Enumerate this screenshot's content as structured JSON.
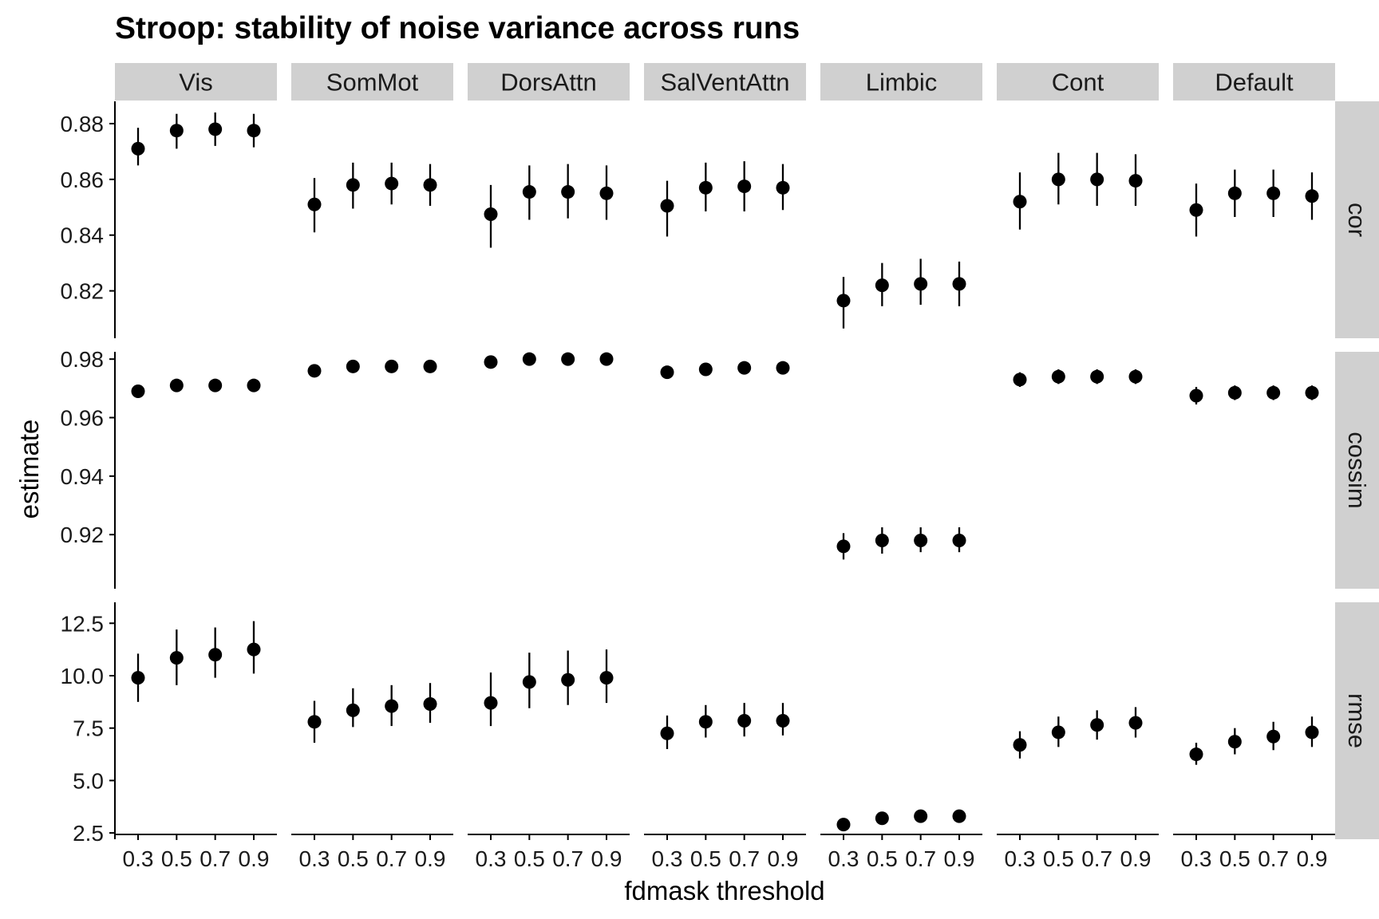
{
  "chart_data": {
    "type": "scatter",
    "title": "Stroop: stability of noise variance across runs",
    "xlabel": "fdmask threshold",
    "ylabel": "estimate",
    "x": [
      0.3,
      0.5,
      0.7,
      0.9
    ],
    "x_tick_labels": [
      "0.3",
      "0.5",
      "0.7",
      "0.9"
    ],
    "networks": [
      "Vis",
      "SomMot",
      "DorsAttn",
      "SalVentAttn",
      "Limbic",
      "Cont",
      "Default"
    ],
    "metrics": [
      {
        "name": "cor",
        "ylim": [
          0.803,
          0.888
        ],
        "y_ticks": [
          0.82,
          0.84,
          0.86,
          0.88
        ],
        "y_tick_labels": [
          "0.82",
          "0.84",
          "0.86",
          "0.88"
        ],
        "series": [
          {
            "name": "Vis",
            "values": [
              0.871,
              0.8775,
              0.878,
              0.8775
            ],
            "lower": [
              0.865,
              0.871,
              0.872,
              0.8715
            ],
            "upper": [
              0.8785,
              0.8835,
              0.884,
              0.8835
            ]
          },
          {
            "name": "SomMot",
            "values": [
              0.851,
              0.858,
              0.8585,
              0.858
            ],
            "lower": [
              0.841,
              0.8495,
              0.851,
              0.8505
            ],
            "upper": [
              0.8605,
              0.866,
              0.866,
              0.8655
            ]
          },
          {
            "name": "DorsAttn",
            "values": [
              0.8475,
              0.8555,
              0.8555,
              0.855
            ],
            "lower": [
              0.8355,
              0.8455,
              0.846,
              0.8455
            ],
            "upper": [
              0.858,
              0.865,
              0.8655,
              0.865
            ]
          },
          {
            "name": "SalVentAttn",
            "values": [
              0.8505,
              0.857,
              0.8575,
              0.857
            ],
            "lower": [
              0.8395,
              0.8485,
              0.8485,
              0.849
            ],
            "upper": [
              0.8595,
              0.866,
              0.8665,
              0.8655
            ]
          },
          {
            "name": "Limbic",
            "values": [
              0.8165,
              0.822,
              0.8225,
              0.8225
            ],
            "lower": [
              0.8065,
              0.8145,
              0.815,
              0.8145
            ],
            "upper": [
              0.825,
              0.83,
              0.8315,
              0.8305
            ]
          },
          {
            "name": "Cont",
            "values": [
              0.852,
              0.86,
              0.86,
              0.8595
            ],
            "lower": [
              0.842,
              0.851,
              0.8505,
              0.8505
            ],
            "upper": [
              0.8625,
              0.8695,
              0.8695,
              0.869
            ]
          },
          {
            "name": "Default",
            "values": [
              0.849,
              0.855,
              0.855,
              0.854
            ],
            "lower": [
              0.8395,
              0.8465,
              0.8465,
              0.8455
            ],
            "upper": [
              0.8585,
              0.8635,
              0.8635,
              0.8625
            ]
          }
        ]
      },
      {
        "name": "cossim",
        "ylim": [
          0.9015,
          0.9825
        ],
        "y_ticks": [
          0.92,
          0.94,
          0.96,
          0.98
        ],
        "y_tick_labels": [
          "0.92",
          "0.94",
          "0.96",
          "0.98"
        ],
        "series": [
          {
            "name": "Vis",
            "values": [
              0.969,
              0.971,
              0.971,
              0.971
            ],
            "lower": [
              0.9675,
              0.9695,
              0.9695,
              0.9695
            ],
            "upper": [
              0.9705,
              0.9725,
              0.9725,
              0.9725
            ]
          },
          {
            "name": "SomMot",
            "values": [
              0.976,
              0.9775,
              0.9775,
              0.9775
            ],
            "lower": [
              0.9745,
              0.976,
              0.976,
              0.976
            ],
            "upper": [
              0.9775,
              0.979,
              0.979,
              0.979
            ]
          },
          {
            "name": "DorsAttn",
            "values": [
              0.979,
              0.98,
              0.98,
              0.98
            ],
            "lower": [
              0.9775,
              0.9785,
              0.9785,
              0.9785
            ],
            "upper": [
              0.9805,
              0.9815,
              0.9815,
              0.9815
            ]
          },
          {
            "name": "SalVentAttn",
            "values": [
              0.9755,
              0.9765,
              0.977,
              0.977
            ],
            "lower": [
              0.974,
              0.975,
              0.9755,
              0.9755
            ],
            "upper": [
              0.977,
              0.978,
              0.9785,
              0.9785
            ]
          },
          {
            "name": "Limbic",
            "values": [
              0.916,
              0.918,
              0.918,
              0.918
            ],
            "lower": [
              0.9115,
              0.9135,
              0.914,
              0.914
            ],
            "upper": [
              0.9205,
              0.9225,
              0.9225,
              0.9225
            ]
          },
          {
            "name": "Cont",
            "values": [
              0.973,
              0.974,
              0.974,
              0.974
            ],
            "lower": [
              0.9705,
              0.9715,
              0.9715,
              0.9715
            ],
            "upper": [
              0.9755,
              0.9765,
              0.9765,
              0.9765
            ]
          },
          {
            "name": "Default",
            "values": [
              0.9675,
              0.9685,
              0.9685,
              0.9685
            ],
            "lower": [
              0.9645,
              0.966,
              0.966,
              0.966
            ],
            "upper": [
              0.9705,
              0.971,
              0.971,
              0.971
            ]
          }
        ]
      },
      {
        "name": "rmse",
        "ylim": [
          2.2,
          13.5
        ],
        "y_ticks": [
          2.5,
          5.0,
          7.5,
          10.0,
          12.5
        ],
        "y_tick_labels": [
          "2.5",
          "5.0",
          "7.5",
          "10.0",
          "12.5"
        ],
        "series": [
          {
            "name": "Vis",
            "values": [
              9.9,
              10.85,
              11.0,
              11.25
            ],
            "lower": [
              8.75,
              9.55,
              9.9,
              10.1
            ],
            "upper": [
              11.05,
              12.2,
              12.3,
              12.6
            ]
          },
          {
            "name": "SomMot",
            "values": [
              7.8,
              8.35,
              8.55,
              8.65
            ],
            "lower": [
              6.8,
              7.55,
              7.6,
              7.75
            ],
            "upper": [
              8.8,
              9.4,
              9.55,
              9.65
            ]
          },
          {
            "name": "DorsAttn",
            "values": [
              8.7,
              9.7,
              9.8,
              9.9
            ],
            "lower": [
              7.6,
              8.45,
              8.6,
              8.7
            ],
            "upper": [
              10.15,
              11.1,
              11.2,
              11.25
            ]
          },
          {
            "name": "SalVentAttn",
            "values": [
              7.25,
              7.8,
              7.85,
              7.85
            ],
            "lower": [
              6.5,
              7.05,
              7.1,
              7.15
            ],
            "upper": [
              8.1,
              8.6,
              8.7,
              8.7
            ]
          },
          {
            "name": "Limbic",
            "values": [
              2.9,
              3.2,
              3.3,
              3.3
            ],
            "lower": [
              2.7,
              3.0,
              3.1,
              3.1
            ],
            "upper": [
              3.1,
              3.4,
              3.5,
              3.5
            ]
          },
          {
            "name": "Cont",
            "values": [
              6.7,
              7.3,
              7.65,
              7.75
            ],
            "lower": [
              6.05,
              6.6,
              6.95,
              7.05
            ],
            "upper": [
              7.35,
              8.05,
              8.35,
              8.5
            ]
          },
          {
            "name": "Default",
            "values": [
              6.25,
              6.85,
              7.1,
              7.3
            ],
            "lower": [
              5.75,
              6.25,
              6.45,
              6.6
            ],
            "upper": [
              6.8,
              7.5,
              7.8,
              8.05
            ]
          }
        ]
      }
    ],
    "grid": false,
    "legend": "none"
  }
}
